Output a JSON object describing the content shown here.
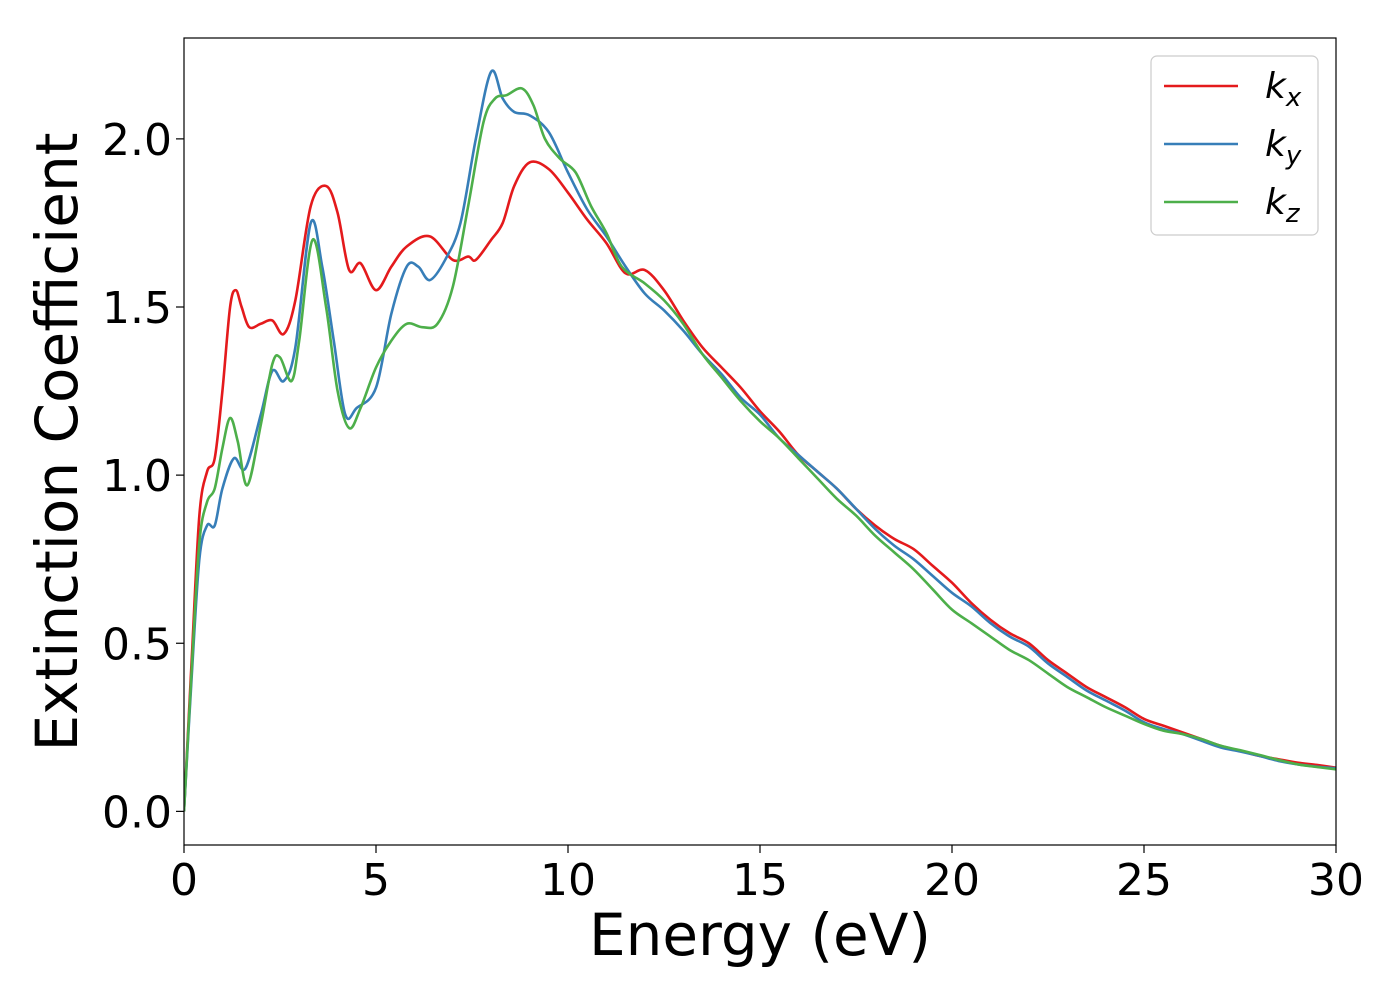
{
  "chart_data": {
    "type": "line",
    "title": "",
    "xlabel": "Energy (eV)",
    "ylabel": "Extinction Coefficient",
    "xlim": [
      0,
      30
    ],
    "ylim": [
      -0.1,
      2.3
    ],
    "xticks": [
      0,
      5,
      10,
      15,
      20,
      25,
      30
    ],
    "xtick_labels": [
      "0",
      "5",
      "10",
      "15",
      "20",
      "25",
      "30"
    ],
    "yticks": [
      0.0,
      0.5,
      1.0,
      1.5,
      2.0
    ],
    "ytick_labels": [
      "0.0",
      "0.5",
      "1.0",
      "1.5",
      "2.0"
    ],
    "grid": false,
    "legend_position": "top-right",
    "series": [
      {
        "name": "k_x",
        "label_main": "k",
        "label_sub": "x",
        "color": "#e41a1c",
        "points": [
          [
            0,
            0.0
          ],
          [
            0.2,
            0.45
          ],
          [
            0.4,
            0.88
          ],
          [
            0.6,
            1.01
          ],
          [
            0.8,
            1.05
          ],
          [
            1.0,
            1.25
          ],
          [
            1.2,
            1.5
          ],
          [
            1.35,
            1.55
          ],
          [
            1.5,
            1.5
          ],
          [
            1.7,
            1.44
          ],
          [
            2.0,
            1.45
          ],
          [
            2.3,
            1.46
          ],
          [
            2.6,
            1.42
          ],
          [
            2.9,
            1.52
          ],
          [
            3.3,
            1.8
          ],
          [
            3.7,
            1.86
          ],
          [
            4.0,
            1.78
          ],
          [
            4.3,
            1.61
          ],
          [
            4.6,
            1.63
          ],
          [
            5.0,
            1.55
          ],
          [
            5.4,
            1.62
          ],
          [
            5.8,
            1.68
          ],
          [
            6.4,
            1.71
          ],
          [
            7.0,
            1.64
          ],
          [
            7.4,
            1.65
          ],
          [
            7.6,
            1.64
          ],
          [
            8.0,
            1.7
          ],
          [
            8.3,
            1.75
          ],
          [
            8.6,
            1.86
          ],
          [
            9.0,
            1.93
          ],
          [
            9.5,
            1.91
          ],
          [
            10.0,
            1.84
          ],
          [
            10.5,
            1.76
          ],
          [
            11.0,
            1.69
          ],
          [
            11.5,
            1.6
          ],
          [
            12.0,
            1.61
          ],
          [
            12.5,
            1.55
          ],
          [
            13.0,
            1.46
          ],
          [
            13.5,
            1.38
          ],
          [
            14.0,
            1.32
          ],
          [
            14.5,
            1.26
          ],
          [
            15.0,
            1.19
          ],
          [
            15.5,
            1.13
          ],
          [
            16.0,
            1.06
          ],
          [
            16.5,
            1.01
          ],
          [
            17.0,
            0.96
          ],
          [
            17.5,
            0.9
          ],
          [
            18.0,
            0.85
          ],
          [
            18.5,
            0.81
          ],
          [
            19.0,
            0.78
          ],
          [
            19.5,
            0.73
          ],
          [
            20.0,
            0.68
          ],
          [
            20.5,
            0.62
          ],
          [
            21.0,
            0.57
          ],
          [
            21.5,
            0.53
          ],
          [
            22.0,
            0.5
          ],
          [
            22.5,
            0.45
          ],
          [
            23.0,
            0.41
          ],
          [
            23.5,
            0.37
          ],
          [
            24.0,
            0.34
          ],
          [
            24.5,
            0.31
          ],
          [
            25.0,
            0.275
          ],
          [
            25.5,
            0.255
          ],
          [
            26.0,
            0.235
          ],
          [
            26.5,
            0.215
          ],
          [
            27.0,
            0.195
          ],
          [
            27.5,
            0.18
          ],
          [
            28.0,
            0.165
          ],
          [
            28.5,
            0.155
          ],
          [
            29.0,
            0.145
          ],
          [
            29.5,
            0.138
          ],
          [
            30.0,
            0.13
          ]
        ]
      },
      {
        "name": "k_y",
        "label_main": "k",
        "label_sub": "y",
        "color": "#377eb8",
        "points": [
          [
            0,
            0.0
          ],
          [
            0.2,
            0.4
          ],
          [
            0.4,
            0.75
          ],
          [
            0.6,
            0.85
          ],
          [
            0.8,
            0.85
          ],
          [
            1.0,
            0.96
          ],
          [
            1.3,
            1.05
          ],
          [
            1.6,
            1.02
          ],
          [
            2.0,
            1.18
          ],
          [
            2.3,
            1.31
          ],
          [
            2.6,
            1.28
          ],
          [
            2.9,
            1.38
          ],
          [
            3.3,
            1.75
          ],
          [
            3.6,
            1.62
          ],
          [
            3.9,
            1.4
          ],
          [
            4.2,
            1.18
          ],
          [
            4.5,
            1.2
          ],
          [
            5.0,
            1.26
          ],
          [
            5.4,
            1.48
          ],
          [
            5.8,
            1.62
          ],
          [
            6.1,
            1.62
          ],
          [
            6.4,
            1.58
          ],
          [
            6.8,
            1.64
          ],
          [
            7.2,
            1.75
          ],
          [
            7.6,
            2.0
          ],
          [
            8.0,
            2.2
          ],
          [
            8.3,
            2.12
          ],
          [
            8.6,
            2.08
          ],
          [
            9.0,
            2.07
          ],
          [
            9.5,
            2.02
          ],
          [
            10.0,
            1.9
          ],
          [
            10.5,
            1.79
          ],
          [
            11.0,
            1.71
          ],
          [
            11.5,
            1.62
          ],
          [
            12.0,
            1.54
          ],
          [
            12.5,
            1.49
          ],
          [
            13.0,
            1.43
          ],
          [
            13.5,
            1.36
          ],
          [
            14.0,
            1.3
          ],
          [
            14.5,
            1.23
          ],
          [
            15.0,
            1.18
          ],
          [
            15.5,
            1.11
          ],
          [
            16.0,
            1.06
          ],
          [
            16.5,
            1.01
          ],
          [
            17.0,
            0.96
          ],
          [
            17.5,
            0.9
          ],
          [
            18.0,
            0.84
          ],
          [
            18.5,
            0.79
          ],
          [
            19.0,
            0.75
          ],
          [
            19.5,
            0.7
          ],
          [
            20.0,
            0.65
          ],
          [
            20.5,
            0.61
          ],
          [
            21.0,
            0.56
          ],
          [
            21.5,
            0.52
          ],
          [
            22.0,
            0.49
          ],
          [
            22.5,
            0.44
          ],
          [
            23.0,
            0.4
          ],
          [
            23.5,
            0.36
          ],
          [
            24.0,
            0.33
          ],
          [
            24.5,
            0.3
          ],
          [
            25.0,
            0.265
          ],
          [
            25.5,
            0.245
          ],
          [
            26.0,
            0.23
          ],
          [
            26.5,
            0.21
          ],
          [
            27.0,
            0.19
          ],
          [
            27.5,
            0.178
          ],
          [
            28.0,
            0.165
          ],
          [
            28.5,
            0.15
          ],
          [
            29.0,
            0.14
          ],
          [
            29.5,
            0.133
          ],
          [
            30.0,
            0.128
          ]
        ]
      },
      {
        "name": "k_z",
        "label_main": "k",
        "label_sub": "z",
        "color": "#4daf4a",
        "points": [
          [
            0,
            0.0
          ],
          [
            0.2,
            0.42
          ],
          [
            0.4,
            0.8
          ],
          [
            0.6,
            0.92
          ],
          [
            0.8,
            0.96
          ],
          [
            1.0,
            1.08
          ],
          [
            1.2,
            1.17
          ],
          [
            1.4,
            1.1
          ],
          [
            1.65,
            0.97
          ],
          [
            2.0,
            1.15
          ],
          [
            2.3,
            1.33
          ],
          [
            2.5,
            1.35
          ],
          [
            2.8,
            1.28
          ],
          [
            3.0,
            1.4
          ],
          [
            3.35,
            1.7
          ],
          [
            3.7,
            1.5
          ],
          [
            4.0,
            1.25
          ],
          [
            4.3,
            1.14
          ],
          [
            4.6,
            1.2
          ],
          [
            5.0,
            1.32
          ],
          [
            5.4,
            1.4
          ],
          [
            5.8,
            1.45
          ],
          [
            6.2,
            1.44
          ],
          [
            6.6,
            1.45
          ],
          [
            7.0,
            1.56
          ],
          [
            7.4,
            1.8
          ],
          [
            7.8,
            2.05
          ],
          [
            8.1,
            2.12
          ],
          [
            8.4,
            2.13
          ],
          [
            8.8,
            2.15
          ],
          [
            9.1,
            2.1
          ],
          [
            9.4,
            2.0
          ],
          [
            9.8,
            1.94
          ],
          [
            10.2,
            1.9
          ],
          [
            10.6,
            1.8
          ],
          [
            11.0,
            1.72
          ],
          [
            11.4,
            1.62
          ],
          [
            12.0,
            1.57
          ],
          [
            12.5,
            1.52
          ],
          [
            13.0,
            1.45
          ],
          [
            13.5,
            1.36
          ],
          [
            14.0,
            1.29
          ],
          [
            14.5,
            1.22
          ],
          [
            15.0,
            1.16
          ],
          [
            15.5,
            1.11
          ],
          [
            16.0,
            1.05
          ],
          [
            16.5,
            0.99
          ],
          [
            17.0,
            0.93
          ],
          [
            17.5,
            0.88
          ],
          [
            18.0,
            0.82
          ],
          [
            18.5,
            0.77
          ],
          [
            19.0,
            0.72
          ],
          [
            19.5,
            0.66
          ],
          [
            20.0,
            0.6
          ],
          [
            20.5,
            0.56
          ],
          [
            21.0,
            0.52
          ],
          [
            21.5,
            0.48
          ],
          [
            22.0,
            0.45
          ],
          [
            22.5,
            0.41
          ],
          [
            23.0,
            0.37
          ],
          [
            23.5,
            0.34
          ],
          [
            24.0,
            0.31
          ],
          [
            24.5,
            0.285
          ],
          [
            25.0,
            0.26
          ],
          [
            25.5,
            0.24
          ],
          [
            26.0,
            0.23
          ],
          [
            26.5,
            0.215
          ],
          [
            27.0,
            0.195
          ],
          [
            27.5,
            0.182
          ],
          [
            28.0,
            0.168
          ],
          [
            28.5,
            0.153
          ],
          [
            29.0,
            0.14
          ],
          [
            29.5,
            0.132
          ],
          [
            30.0,
            0.125
          ]
        ]
      }
    ]
  }
}
